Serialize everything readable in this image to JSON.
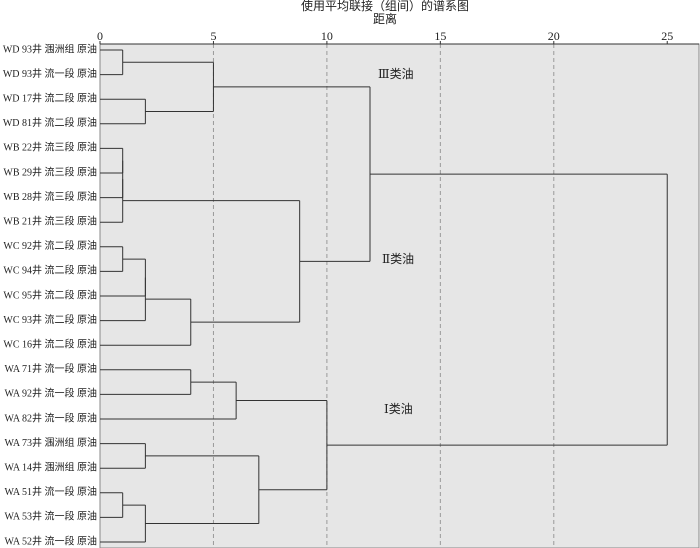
{
  "chart_data": {
    "type": "dendrogram",
    "title": "使用平均联接（组间）的谱系图",
    "x_label": "距离",
    "xlim": [
      0,
      26.4
    ],
    "xticks": [
      0,
      5,
      10,
      15,
      20,
      25
    ],
    "grid": true,
    "leaves": [
      "WD 93井 涠洲组 原油",
      "WD 93井 流一段 原油",
      "WD 17井 流二段 原油",
      "WD 81井 流二段 原油",
      "WB 22井 流三段 原油",
      "WB 29井 流三段 原油",
      "WB 28井 流三段 原油",
      "WB 21井 流三段 原油",
      "WC 92井 流二段 原油",
      "WC 94井 流二段 原油",
      "WC 95井 流二段 原油",
      "WC 93井 流二段 原油",
      "WC 16井 流二段 原油",
      "WA 71井 流一段 原油",
      "WA 92井 流一段 原油",
      "WA 82井 流一段 原油",
      "WA 73井 涠洲组 原油",
      "WA 14井 涠洲组 原油",
      "WA 51井 流一段 原油",
      "WA 53井 流一段 原油",
      "WA 52井 流一段 原油"
    ],
    "merges": [
      {
        "a": 0,
        "b": 1,
        "height": 1
      },
      {
        "a": 2,
        "b": 3,
        "height": 2
      },
      {
        "a": 21,
        "b": 22,
        "height": 5
      },
      {
        "a": 4,
        "b": 5,
        "height": 1
      },
      {
        "a": 24,
        "b": 6,
        "height": 1
      },
      {
        "a": 25,
        "b": 7,
        "height": 1
      },
      {
        "a": 8,
        "b": 9,
        "height": 1
      },
      {
        "a": 27,
        "b": 10,
        "height": 2
      },
      {
        "a": 28,
        "b": 11,
        "height": 2
      },
      {
        "a": 29,
        "b": 12,
        "height": 4
      },
      {
        "a": 26,
        "b": 30,
        "height": 8.8
      },
      {
        "a": 23,
        "b": 31,
        "height": 11.9
      },
      {
        "a": 13,
        "b": 14,
        "height": 4
      },
      {
        "a": 33,
        "b": 15,
        "height": 6
      },
      {
        "a": 16,
        "b": 17,
        "height": 2
      },
      {
        "a": 18,
        "b": 19,
        "height": 1
      },
      {
        "a": 36,
        "b": 20,
        "height": 2
      },
      {
        "a": 35,
        "b": 37,
        "height": 7
      },
      {
        "a": 34,
        "b": 38,
        "height": 10
      },
      {
        "a": 32,
        "b": 39,
        "height": 25
      }
    ],
    "annotations": [
      "Ⅲ类油",
      "Ⅱ类油",
      "Ⅰ类油"
    ]
  }
}
